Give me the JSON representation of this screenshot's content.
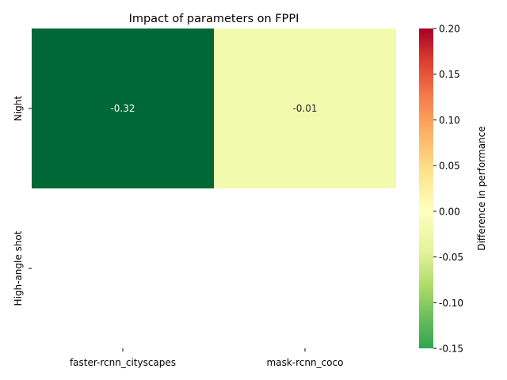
{
  "chart_data": {
    "type": "heatmap",
    "title": "Impact of parameters on FPPI",
    "columns": [
      "faster-rcnn_cityscapes",
      "mask-rcnn_coco"
    ],
    "rows": [
      "Night",
      "High-angle shot"
    ],
    "values": [
      [
        -0.32,
        -0.01
      ],
      [
        null,
        null
      ]
    ],
    "annotations": [
      [
        "-0.32",
        "-0.01"
      ],
      [
        "",
        ""
      ]
    ],
    "colorbar": {
      "label": "Difference in performance",
      "min": -0.15,
      "max": 0.2,
      "ticks": [
        "0.20",
        "0.15",
        "0.10",
        "0.05",
        "0.00",
        "-0.05",
        "-0.10",
        "-0.15"
      ],
      "tick_values": [
        0.2,
        0.15,
        0.1,
        0.05,
        0.0,
        -0.05,
        -0.1,
        -0.15
      ],
      "colormap": "RdYlGn_r",
      "center": 0.0
    }
  }
}
